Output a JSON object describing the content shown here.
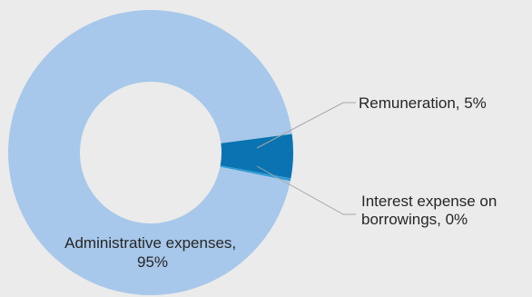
{
  "chart_data": {
    "type": "pie",
    "variant": "donut",
    "slices": [
      {
        "label_lines": [
          "Administrative expenses,",
          "95%"
        ],
        "value": 95,
        "color": "#a7c8ea"
      },
      {
        "label_lines": [
          "Remuneration, 5%"
        ],
        "value": 5,
        "color": "#0a73b2"
      },
      {
        "label_lines": [
          "Interest expense on",
          "borrowings, 0%"
        ],
        "value": 0.3,
        "color": "#2e9bd6"
      }
    ],
    "background": "#ebebeb"
  }
}
